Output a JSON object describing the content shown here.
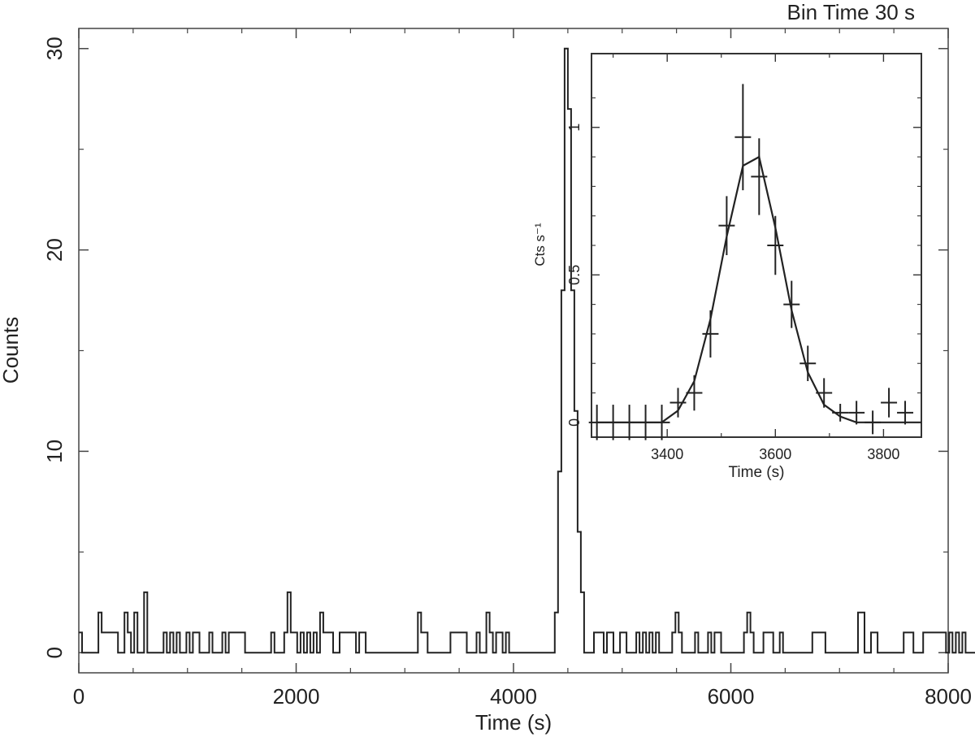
{
  "annotation": "Bin Time 30 s",
  "chart_data": [
    {
      "type": "line",
      "role": "main",
      "xlabel": "Time (s)",
      "ylabel": "Counts",
      "xlim": [
        0,
        8000
      ],
      "ylim": [
        -1,
        31
      ],
      "x_ticks": [
        0,
        2000,
        4000,
        6000,
        8000
      ],
      "y_ticks": [
        0,
        10,
        20,
        30
      ],
      "x_tick_labels": [
        "0",
        "2000",
        "4000",
        "6000",
        "8000"
      ],
      "y_tick_labels": [
        "0",
        "10",
        "20",
        "30"
      ],
      "bin_width": 30,
      "x_start": 0,
      "grid": false,
      "values": [
        1,
        0,
        0,
        0,
        0,
        0,
        2,
        1,
        1,
        1,
        1,
        1,
        0,
        0,
        2,
        1,
        0,
        2,
        0,
        0,
        3,
        0,
        0,
        0,
        0,
        0,
        1,
        0,
        1,
        0,
        1,
        0,
        0,
        1,
        0,
        1,
        1,
        0,
        0,
        0,
        1,
        0,
        0,
        0,
        1,
        0,
        1,
        1,
        1,
        1,
        1,
        0,
        0,
        0,
        0,
        0,
        0,
        0,
        0,
        1,
        0,
        0,
        0,
        1,
        3,
        1,
        1,
        0,
        1,
        0,
        1,
        0,
        1,
        0,
        2,
        1,
        1,
        1,
        0,
        0,
        1,
        1,
        1,
        1,
        1,
        0,
        1,
        1,
        0,
        0,
        0,
        0,
        0,
        0,
        0,
        0,
        0,
        0,
        0,
        0,
        0,
        0,
        0,
        0,
        2,
        1,
        1,
        0,
        0,
        0,
        0,
        0,
        0,
        0,
        1,
        1,
        1,
        1,
        1,
        0,
        0,
        0,
        1,
        0,
        0,
        2,
        1,
        0,
        1,
        1,
        0,
        1,
        0,
        0,
        0,
        0,
        0,
        0,
        0,
        0,
        0,
        0,
        0,
        0,
        0,
        0,
        2,
        9,
        18,
        30,
        27,
        18,
        12,
        6,
        3,
        0,
        0,
        0,
        1,
        1,
        1,
        0,
        1,
        1,
        0,
        0,
        1,
        1,
        0,
        0,
        0,
        1,
        0,
        1,
        0,
        1,
        0,
        1,
        0,
        0,
        0,
        0,
        1,
        2,
        1,
        0,
        0,
        0,
        0,
        1,
        0,
        0,
        0,
        1,
        0,
        1,
        1,
        0,
        0,
        0,
        0,
        0,
        0,
        0,
        1,
        2,
        1,
        0,
        0,
        0,
        1,
        1,
        1,
        0,
        0,
        1,
        0,
        0,
        0,
        0,
        0,
        0,
        0,
        0,
        0,
        1,
        1,
        1,
        1,
        0,
        0,
        0,
        0,
        0,
        0,
        0,
        0,
        0,
        0,
        2,
        2,
        0,
        0,
        1,
        1,
        0,
        0,
        0,
        0,
        0,
        0,
        0,
        0,
        1,
        1,
        1,
        0,
        0,
        0,
        1,
        1,
        1,
        1,
        1,
        1,
        1,
        0,
        1,
        0,
        1,
        0,
        1,
        0,
        0,
        0,
        0,
        0,
        0,
        1,
        1,
        1,
        1,
        1,
        1,
        1,
        1,
        1,
        1,
        0,
        1,
        0,
        1,
        0,
        1,
        0,
        0,
        0,
        0,
        0,
        0,
        0,
        0,
        0,
        0,
        0,
        0,
        0,
        0,
        0,
        0,
        0,
        0,
        1,
        1,
        1,
        1,
        1,
        1,
        1,
        0,
        0,
        1,
        1,
        1,
        1,
        1,
        0,
        0,
        0,
        1,
        0,
        1,
        0,
        1,
        1,
        0,
        0,
        2,
        1,
        1,
        1,
        0,
        0,
        3,
        1,
        0,
        1,
        0,
        2,
        1,
        1,
        1,
        0,
        1,
        0,
        1,
        0,
        2
      ]
    },
    {
      "type": "scatter",
      "role": "inset",
      "xlabel": "Time (s)",
      "ylabel": "Cts s⁻¹",
      "xlim": [
        3260,
        3870
      ],
      "ylim": [
        -0.05,
        1.25
      ],
      "x_ticks": [
        3400,
        3600,
        3800
      ],
      "y_ticks": [
        0,
        0.5,
        1
      ],
      "x_tick_labels": [
        "3400",
        "3600",
        "3800"
      ],
      "y_tick_labels": [
        "0",
        "0.5",
        "1"
      ],
      "x_error": 15,
      "points": [
        {
          "x": 3270,
          "y": 0.0,
          "err": 0.06
        },
        {
          "x": 3300,
          "y": 0.0,
          "err": 0.06
        },
        {
          "x": 3330,
          "y": 0.0,
          "err": 0.06
        },
        {
          "x": 3360,
          "y": 0.0,
          "err": 0.06
        },
        {
          "x": 3390,
          "y": 0.0,
          "err": 0.06
        },
        {
          "x": 3420,
          "y": 0.067,
          "err": 0.05
        },
        {
          "x": 3450,
          "y": 0.1,
          "err": 0.06
        },
        {
          "x": 3480,
          "y": 0.3,
          "err": 0.08
        },
        {
          "x": 3510,
          "y": 0.667,
          "err": 0.1
        },
        {
          "x": 3540,
          "y": 0.967,
          "err": 0.18
        },
        {
          "x": 3570,
          "y": 0.833,
          "err": 0.13
        },
        {
          "x": 3600,
          "y": 0.6,
          "err": 0.1
        },
        {
          "x": 3630,
          "y": 0.4,
          "err": 0.08
        },
        {
          "x": 3660,
          "y": 0.2,
          "err": 0.06
        },
        {
          "x": 3690,
          "y": 0.1,
          "err": 0.05
        },
        {
          "x": 3720,
          "y": 0.033,
          "err": 0.03
        },
        {
          "x": 3750,
          "y": 0.033,
          "err": 0.04
        },
        {
          "x": 3780,
          "y": 0.0,
          "err": 0.04
        },
        {
          "x": 3810,
          "y": 0.067,
          "err": 0.05
        },
        {
          "x": 3840,
          "y": 0.033,
          "err": 0.04
        }
      ],
      "model": {
        "x": [
          3270,
          3300,
          3330,
          3360,
          3390,
          3420,
          3450,
          3480,
          3510,
          3540,
          3570,
          3600,
          3630,
          3660,
          3690,
          3720,
          3750,
          3780,
          3810,
          3840,
          3870
        ],
        "y": [
          0.0,
          0.0,
          0.0,
          0.0,
          0.0,
          0.04,
          0.14,
          0.35,
          0.63,
          0.87,
          0.9,
          0.66,
          0.38,
          0.17,
          0.06,
          0.02,
          0.0,
          0.0,
          0.0,
          0.0,
          0.0
        ]
      }
    }
  ]
}
